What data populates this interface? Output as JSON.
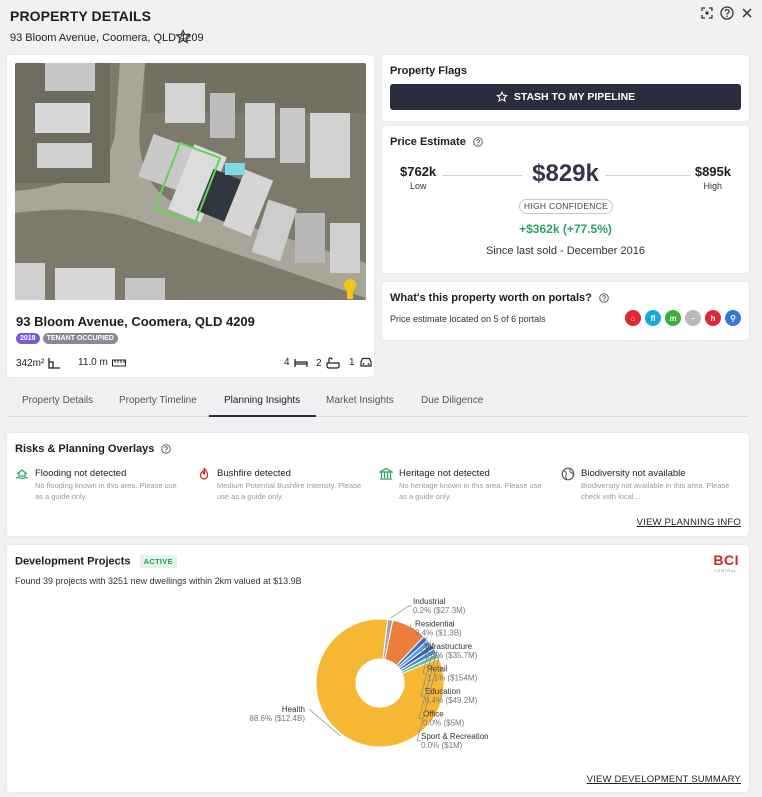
{
  "header": {
    "title": "PROPERTY DETAILS",
    "address": "93 Bloom Avenue, Coomera, QLD 4209"
  },
  "property": {
    "address": "93 Bloom Avenue, Coomera, QLD 4209",
    "year_badge": "2018",
    "occupancy_badge": "TENANT OCCUPIED",
    "land_area": "342m²",
    "frontage": "11.0 m",
    "beds": "4",
    "baths": "2",
    "cars": "1"
  },
  "flags": {
    "title": "Property Flags",
    "stash_label": "STASH TO MY PIPELINE"
  },
  "price": {
    "title": "Price Estimate",
    "low_value": "$762k",
    "low_label": "Low",
    "estimate": "$829k",
    "high_value": "$895k",
    "high_label": "High",
    "confidence": "HIGH CONFIDENCE",
    "gain": "+$362k (+77.5%)",
    "since": "Since last sold - December 2016"
  },
  "portals": {
    "title": "What's this property worth on portals?",
    "subtitle": "Price estimate located on 5 of 6 portals",
    "icons": [
      {
        "name": "home-portal-icon",
        "color": "#e3262d",
        "glyph": "⌂"
      },
      {
        "name": "flatmates-portal-icon",
        "color": "#19a7d8",
        "glyph": "fl"
      },
      {
        "name": "m-portal-icon",
        "color": "#3fae3a",
        "glyph": "m"
      },
      {
        "name": "grey-portal-icon",
        "color": "#b8b8bd",
        "glyph": "–"
      },
      {
        "name": "h-portal-icon",
        "color": "#e3263a",
        "glyph": "h"
      },
      {
        "name": "blue-portal-icon",
        "color": "#2f7bd8",
        "glyph": "⚲"
      }
    ]
  },
  "tabs": [
    "Property Details",
    "Property Timeline",
    "Planning Insights",
    "Market Insights",
    "Due Diligence"
  ],
  "risks": {
    "title": "Risks & Planning Overlays",
    "items": [
      {
        "title": "Flooding not detected",
        "desc": "No flooding known in this area. Please use as a guide only."
      },
      {
        "title": "Bushfire detected",
        "desc": "Medium Potential Bushfire Intensity. Please use as a guide only."
      },
      {
        "title": "Heritage not detected",
        "desc": "No heritage known in this area. Please use as a guide only."
      },
      {
        "title": "Biodiversity not available",
        "desc": "Biodiversity not available in this area. Please check with local..."
      }
    ],
    "link": "VIEW PLANNING INFO"
  },
  "development": {
    "title": "Development Projects",
    "status": "ACTIVE",
    "summary": "Found 39 projects with 3251 new dwellings within 2km valued at $13.9B",
    "logo": "BCI",
    "logo_sub": "CENTRAL",
    "link": "VIEW DEVELOPMENT SUMMARY"
  },
  "chart_data": {
    "type": "pie",
    "title": "",
    "series": [
      {
        "name": "Industrial",
        "label": "0.2% ($27.3M)",
        "value": 0.2,
        "color": "#a3a3a8"
      },
      {
        "name": "Residential",
        "label": "9.4% ($1.3B)",
        "value": 9.4,
        "color": "#ee7d3b"
      },
      {
        "name": "Infrastructure",
        "label": "0.3% ($35.7M)",
        "value": 0.3,
        "color": "#3d6fc9"
      },
      {
        "name": "Retail",
        "label": "1.1% ($154M)",
        "value": 1.1,
        "color": "#5d98d6"
      },
      {
        "name": "Education",
        "label": "0.4% ($49.2M)",
        "value": 0.4,
        "color": "#2e5fb8"
      },
      {
        "name": "Office",
        "label": "0.0% ($5M)",
        "value": 0.0,
        "color": "#4a86cf"
      },
      {
        "name": "Sport & Recreation",
        "label": "0.0% ($1M)",
        "value": 0.0,
        "color": "#6fbf9f"
      },
      {
        "name": "Health",
        "label": "88.6% ($12.4B)",
        "value": 88.6,
        "color": "#f7b733"
      }
    ]
  }
}
